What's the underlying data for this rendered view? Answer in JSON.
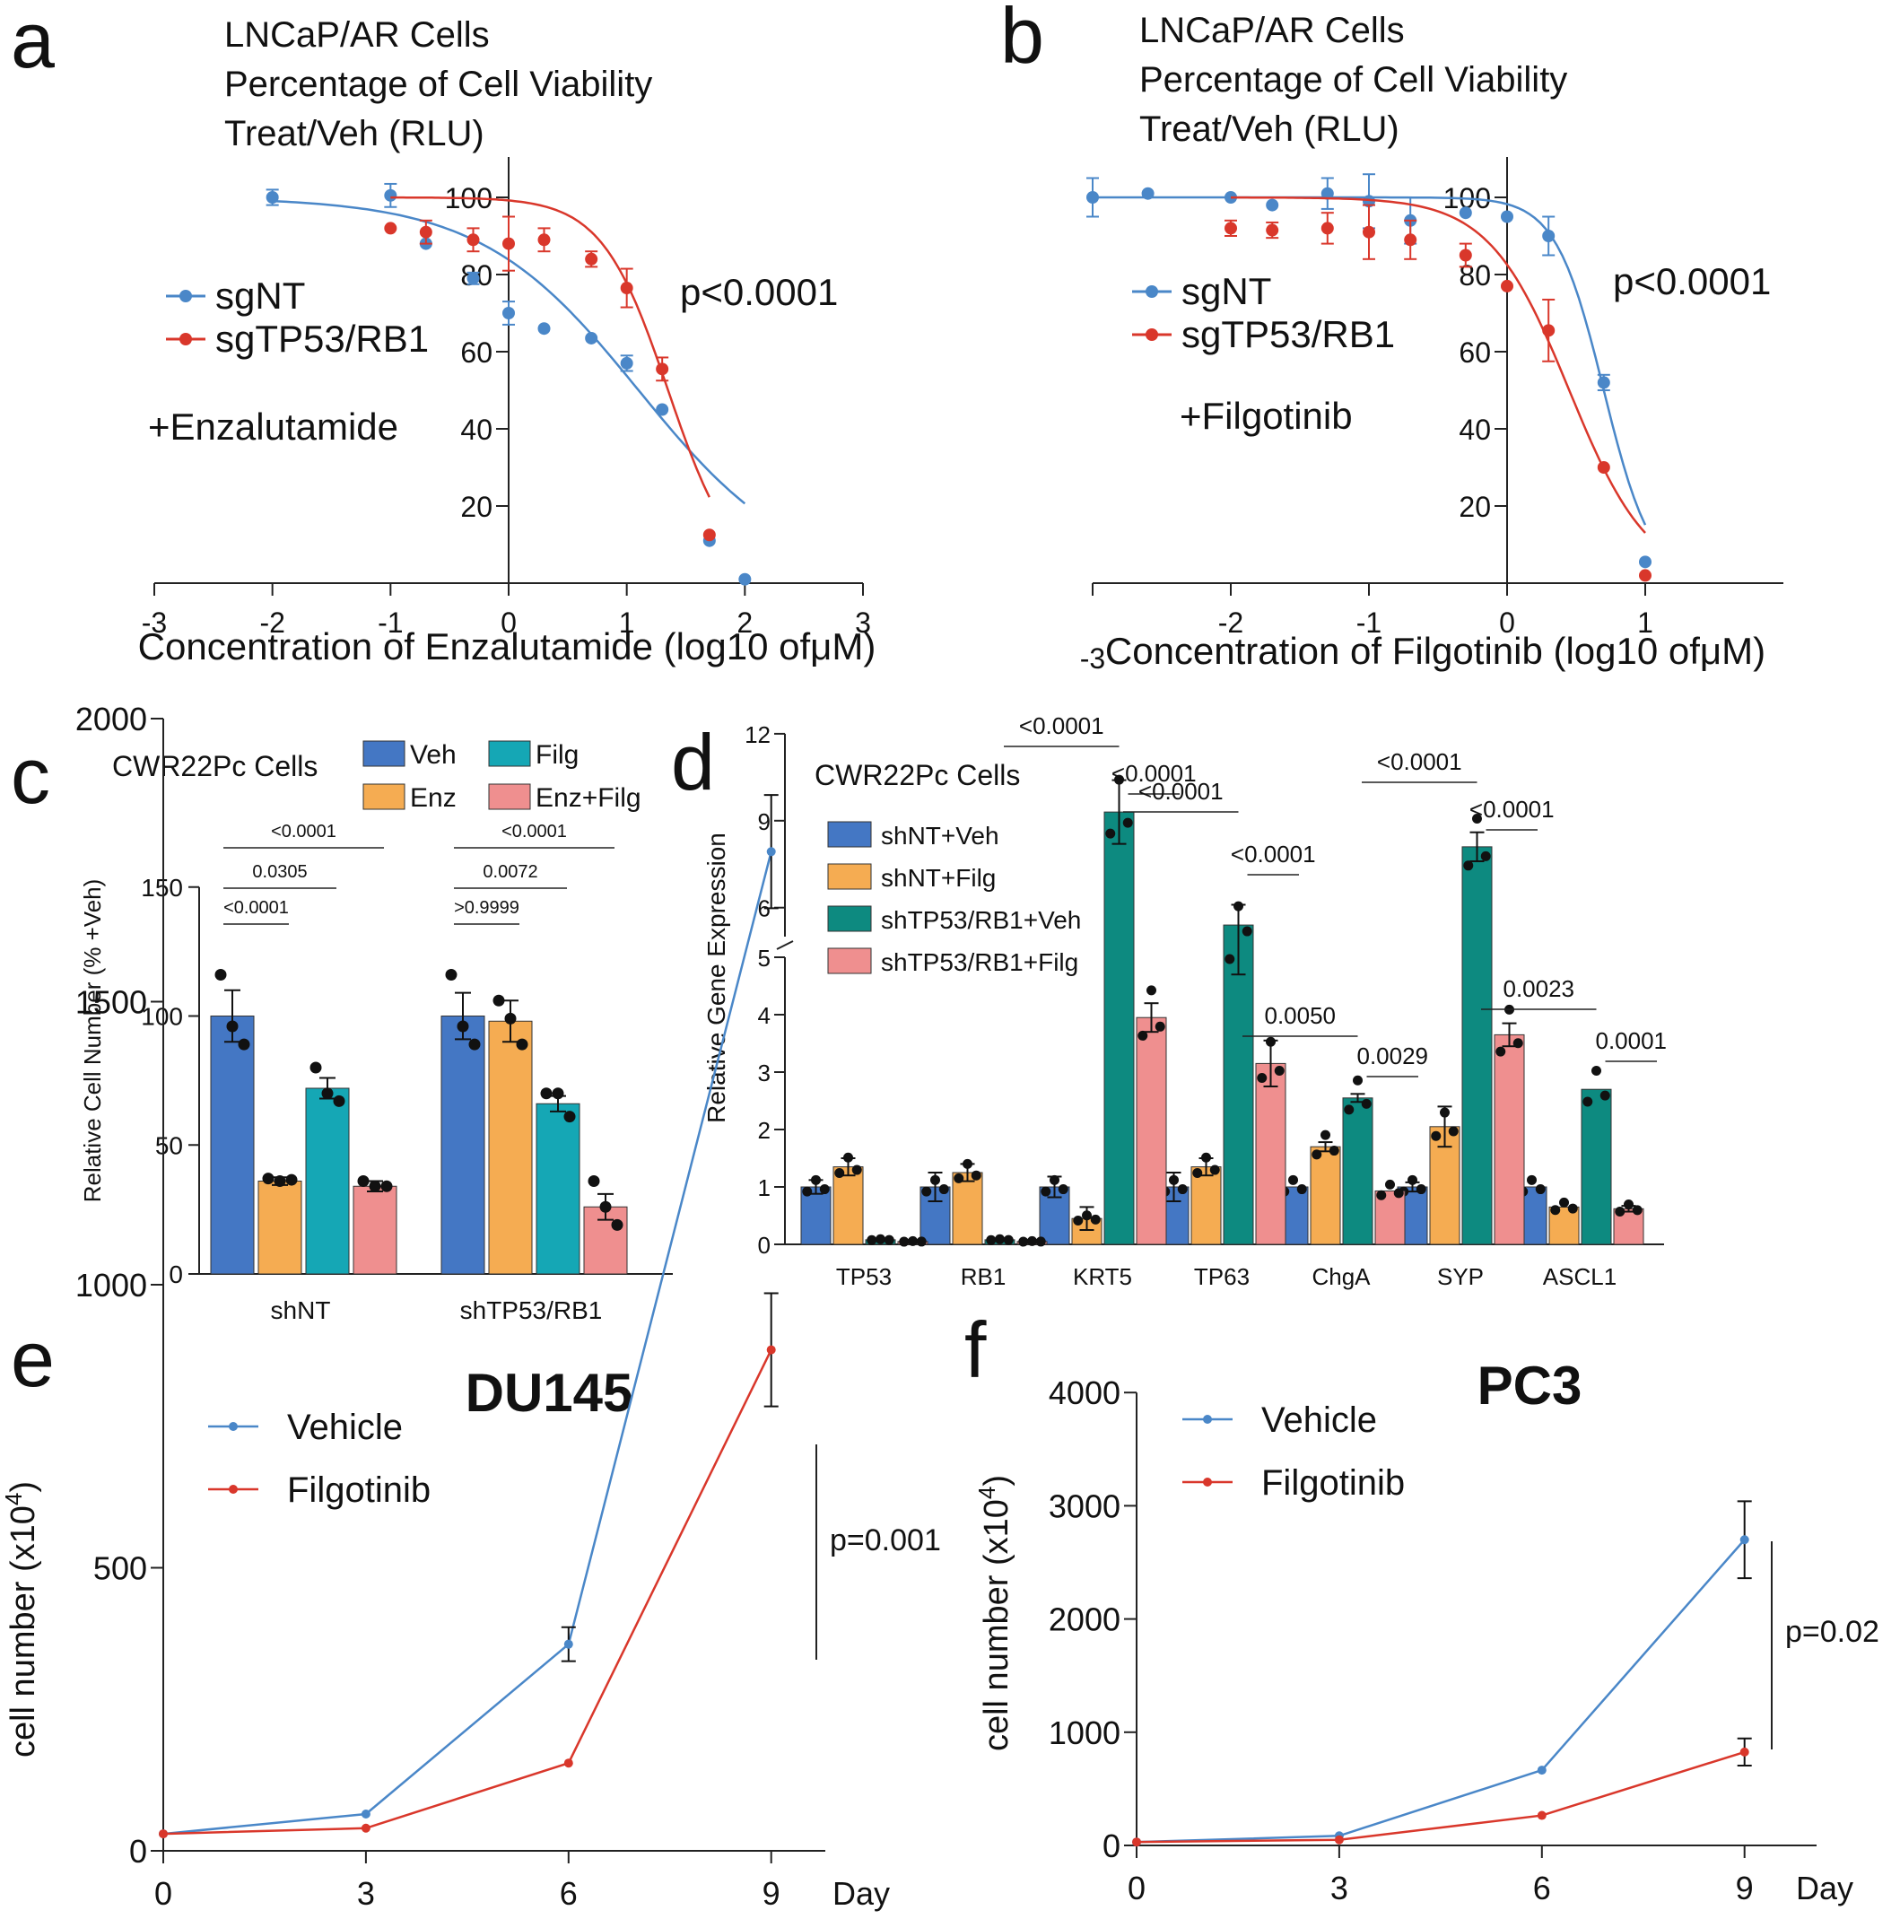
{
  "colors": {
    "blue": "#4a87c8",
    "red": "#d9372b",
    "bar_veh": "#4477c4",
    "bar_enz": "#f5ac52",
    "bar_filg": "#15a7b5",
    "bar_teal": "#0d8a80",
    "bar_pink": "#ef8f8f",
    "axis": "#222222"
  },
  "chart_data": [
    {
      "panel": "a",
      "type": "scatter",
      "title": [
        "LNCaP/AR Cells",
        "Percentage of Cell Viability",
        "Treat/Veh (RLU)"
      ],
      "xlabel": "Concentration of Enzalutamide (log10 ofμM)",
      "xlim": [
        -3,
        3
      ],
      "ylim": [
        0,
        110
      ],
      "x_ticks": [
        "-3",
        "-2",
        "-1",
        "0",
        "1",
        "2",
        "3"
      ],
      "y_ticks": [
        "20",
        "40",
        "60",
        "80",
        "100"
      ],
      "treatment": "+Enzalutamide",
      "pvalue": "p<0.0001",
      "series": [
        {
          "name": "sgNT",
          "color": "blue",
          "points": [
            [
              -2,
              100
            ],
            [
              -1,
              100.5
            ],
            [
              -0.7,
              88
            ],
            [
              -0.3,
              79
            ],
            [
              0,
              70
            ],
            [
              0.3,
              66
            ],
            [
              0.7,
              63.5
            ],
            [
              1,
              57
            ],
            [
              1.3,
              45
            ],
            [
              1.7,
              11
            ],
            [
              2,
              1
            ]
          ],
          "err": [
            2,
            3,
            1,
            1.5,
            3,
            1,
            1,
            2,
            1,
            1,
            1
          ],
          "fit": {
            "top": 100,
            "bottom": 0,
            "ic50": 1.1,
            "hill": 0.65
          }
        },
        {
          "name": "sgTP53/RB1",
          "color": "red",
          "points": [
            [
              -1,
              92
            ],
            [
              -0.7,
              91
            ],
            [
              -0.3,
              89
            ],
            [
              0,
              88
            ],
            [
              0.3,
              89
            ],
            [
              0.7,
              84
            ],
            [
              1,
              76.5
            ],
            [
              1.3,
              55.5
            ],
            [
              1.7,
              12.5
            ]
          ],
          "err": [
            1,
            3,
            3,
            7,
            3,
            2,
            5,
            3,
            1
          ],
          "fit": {
            "top": 100,
            "bottom": 0,
            "ic50": 1.35,
            "hill": 1.55
          }
        }
      ]
    },
    {
      "panel": "b",
      "type": "scatter",
      "title": [
        "LNCaP/AR Cells",
        "Percentage of Cell Viability",
        "Treat/Veh (RLU)"
      ],
      "xlabel": "Concentration of Filgotinib (log10 ofμM)",
      "xlim": [
        -3,
        2
      ],
      "ylim": [
        0,
        110
      ],
      "x_ticks": [
        "-3",
        "-2",
        "-1",
        "0",
        "1"
      ],
      "y_ticks": [
        "20",
        "40",
        "60",
        "80",
        "100"
      ],
      "treatment": "+Filgotinib",
      "pvalue": "p<0.0001",
      "series": [
        {
          "name": "sgNT",
          "color": "blue",
          "points": [
            [
              -3,
              100
            ],
            [
              -2.6,
              101
            ],
            [
              -2,
              100
            ],
            [
              -1.7,
              98
            ],
            [
              -1.3,
              101
            ],
            [
              -1,
              99
            ],
            [
              -0.7,
              94
            ],
            [
              -0.3,
              96
            ],
            [
              0,
              95
            ],
            [
              0.3,
              90
            ],
            [
              0.7,
              52
            ],
            [
              1,
              5.5
            ]
          ],
          "err": [
            5,
            1,
            1,
            1,
            4,
            7,
            6,
            1,
            1,
            5,
            2,
            1
          ],
          "fit": {
            "top": 100,
            "bottom": 0,
            "ic50": 0.7,
            "hill": 2.5
          }
        },
        {
          "name": "sgTP53/RB1",
          "color": "red",
          "points": [
            [
              -2,
              92
            ],
            [
              -1.7,
              91.5
            ],
            [
              -1.3,
              92
            ],
            [
              -1,
              91
            ],
            [
              -0.7,
              89
            ],
            [
              -0.3,
              85
            ],
            [
              0,
              77
            ],
            [
              0.3,
              65.5
            ],
            [
              0.7,
              30
            ],
            [
              1,
              2
            ]
          ],
          "err": [
            2,
            2,
            4,
            7,
            5,
            3,
            1,
            8,
            1,
            1
          ],
          "fit": {
            "top": 100,
            "bottom": 0,
            "ic50": 0.45,
            "hill": 1.5
          }
        }
      ]
    },
    {
      "panel": "c",
      "type": "bar",
      "title": "CWR22Pc Cells",
      "ylabel": "Relative Cell Number (% +Veh)",
      "ylim": [
        0,
        150
      ],
      "y_ticks": [
        "0",
        "50",
        "100",
        "150"
      ],
      "categories": [
        "shNT",
        "shTP53/RB1"
      ],
      "series": [
        {
          "name": "Veh",
          "color": "bar_veh",
          "values": [
            100,
            100
          ],
          "err": [
            10,
            9
          ],
          "dots": [
            [
              116,
              96,
              89
            ],
            [
              116,
              96,
              89
            ]
          ]
        },
        {
          "name": "Enz",
          "color": "bar_enz",
          "values": [
            36,
            98
          ],
          "err": [
            1.5,
            8
          ],
          "dots": [
            [
              37,
              36,
              36.5
            ],
            [
              106,
              99,
              89
            ]
          ]
        },
        {
          "name": "Filg",
          "color": "bar_filg",
          "values": [
            72,
            66
          ],
          "err": [
            4,
            3
          ],
          "dots": [
            [
              80,
              70,
              67
            ],
            [
              70,
              70,
              61
            ]
          ]
        },
        {
          "name": "Enz+Filg",
          "color": "bar_pink",
          "values": [
            34,
            26
          ],
          "err": [
            2,
            5
          ],
          "dots": [
            [
              36,
              34,
              34
            ],
            [
              36,
              26,
              19
            ]
          ]
        }
      ],
      "comparisons": [
        [
          "<0.0001",
          "0.0305",
          "<0.0001"
        ],
        [
          ">0.9999",
          "0.0072",
          "<0.0001"
        ]
      ]
    },
    {
      "panel": "d",
      "type": "bar",
      "title": "CWR22Pc Cells",
      "ylabel": "Relative Gene Expression",
      "ylim": [
        0,
        12
      ],
      "y_ticks_lower": [
        "0",
        "1",
        "2",
        "3",
        "4",
        "5"
      ],
      "y_ticks_upper": [
        "6",
        "9",
        "12"
      ],
      "categories": [
        "TP53",
        "RB1",
        "KRT5",
        "TP63",
        "ChgA",
        "SYP",
        "ASCL1"
      ],
      "series": [
        {
          "name": "shNT+Veh",
          "color": "bar_veh",
          "values": [
            1.0,
            1.0,
            1.0,
            1.0,
            1.0,
            1.0,
            1.0
          ],
          "err": [
            0.12,
            0.25,
            0.18,
            0.25,
            0.03,
            0.08,
            0.03
          ]
        },
        {
          "name": "shNT+Filg",
          "color": "bar_enz",
          "values": [
            1.35,
            1.25,
            0.45,
            1.35,
            1.7,
            2.05,
            0.65
          ],
          "err": [
            0.15,
            0.15,
            0.2,
            0.15,
            0.08,
            0.35,
            0.03
          ]
        },
        {
          "name": "shTP53/RB1+Veh",
          "color": "bar_teal",
          "values": [
            0.08,
            0.08,
            9.3,
            5.4,
            2.55,
            8.1,
            2.7
          ],
          "err": [
            0.02,
            0.02,
            1.1,
            0.7,
            0.07,
            0.5,
            0.02
          ]
        },
        {
          "name": "shTP53/RB1+Filg",
          "color": "bar_pink",
          "values": [
            0.05,
            0.05,
            3.95,
            3.15,
            0.93,
            3.65,
            0.62
          ],
          "err": [
            0.01,
            0.01,
            0.25,
            0.4,
            0.03,
            0.2,
            0.05
          ]
        }
      ],
      "comparisons": [
        {
          "gene": "KRT5",
          "labels": [
            "<0.0001",
            "<0.0001"
          ]
        },
        {
          "gene": "TP63",
          "labels": [
            "<0.0001",
            "<0.0001"
          ]
        },
        {
          "gene": "ChgA",
          "labels": [
            "0.0050",
            "0.0029"
          ]
        },
        {
          "gene": "SYP",
          "labels": [
            "<0.0001",
            "<0.0001"
          ]
        },
        {
          "gene": "ASCL1",
          "labels": [
            "0.0023",
            "0.0001"
          ]
        }
      ]
    },
    {
      "panel": "e",
      "type": "line",
      "title": "DU145",
      "ylabel": "cell number (x10",
      "ylabel_sup": "4",
      "ylabel_end": ")",
      "xlabel": "Day",
      "x": [
        0,
        3,
        6,
        9
      ],
      "xlim": [
        0,
        10
      ],
      "ylim": [
        0,
        2000
      ],
      "y_ticks": [
        "0",
        "500",
        "1000",
        "1500",
        "2000"
      ],
      "pvalue": "p=0.001",
      "series": [
        {
          "name": "Vehicle",
          "color": "blue",
          "values": [
            30,
            65,
            365,
            1765
          ],
          "err": [
            0,
            0,
            30,
            100
          ]
        },
        {
          "name": "Filgotinib",
          "color": "red",
          "values": [
            30,
            40,
            155,
            885
          ],
          "err": [
            0,
            0,
            0,
            100
          ]
        }
      ]
    },
    {
      "panel": "f",
      "type": "line",
      "title": "PC3",
      "ylabel": "cell number (x10",
      "ylabel_sup": "4",
      "ylabel_end": ")",
      "xlabel": "Day",
      "x": [
        0,
        3,
        6,
        9
      ],
      "xlim": [
        0,
        10
      ],
      "ylim": [
        0,
        4000
      ],
      "y_ticks": [
        "0",
        "1000",
        "2000",
        "3000",
        "4000"
      ],
      "pvalue": "p=0.02",
      "series": [
        {
          "name": "Vehicle",
          "color": "blue",
          "values": [
            30,
            85,
            665,
            2700
          ],
          "err": [
            0,
            0,
            0,
            340
          ]
        },
        {
          "name": "Filgotinib",
          "color": "red",
          "values": [
            30,
            50,
            265,
            825
          ],
          "err": [
            0,
            0,
            0,
            120
          ]
        }
      ]
    }
  ]
}
